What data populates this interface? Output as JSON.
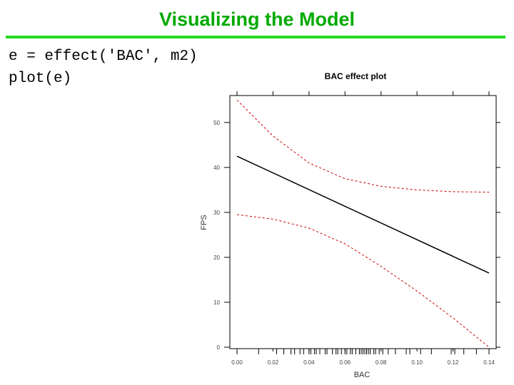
{
  "slide": {
    "title": "Visualizing the Model",
    "code_lines": [
      "e = effect('BAC', m2)",
      "plot(e)"
    ]
  },
  "colors": {
    "title": "#00aa00",
    "rule": "#22dd22",
    "fit_line": "#000000",
    "ci_line": "#cc0000",
    "rug": "#000000"
  },
  "chart_data": {
    "type": "line",
    "title": "BAC effect plot",
    "xlabel": "BAC",
    "ylabel": "FPS",
    "xlim": [
      0,
      0.14
    ],
    "ylim": [
      0,
      56
    ],
    "xticks": [
      0.0,
      0.02,
      0.04,
      0.06,
      0.08,
      0.1,
      0.12,
      0.14
    ],
    "xtick_labels": [
      "0.00",
      "0.02",
      "0.04",
      "0.06",
      "0.08",
      "0.10",
      "0.12",
      "0.14"
    ],
    "yticks": [
      0,
      10,
      20,
      30,
      40,
      50
    ],
    "ytick_labels": [
      "0",
      "10",
      "20",
      "30",
      "40",
      "50"
    ],
    "grid": false,
    "series": [
      {
        "role": "fit",
        "style": "solid",
        "x": [
          0.0,
          0.14
        ],
        "values": [
          42.5,
          16.5
        ]
      },
      {
        "role": "upper-ci",
        "style": "dashed",
        "x": [
          0.0,
          0.02,
          0.04,
          0.06,
          0.08,
          0.1,
          0.12,
          0.14
        ],
        "values": [
          55.0,
          47.0,
          41.0,
          37.5,
          35.8,
          35.0,
          34.6,
          34.5
        ]
      },
      {
        "role": "lower-ci",
        "style": "dashed",
        "x": [
          0.0,
          0.02,
          0.04,
          0.06,
          0.08,
          0.1,
          0.12,
          0.14
        ],
        "values": [
          29.5,
          28.5,
          26.5,
          23.0,
          18.0,
          12.5,
          6.5,
          0.0
        ]
      }
    ],
    "rug_x": [
      0.0,
      0.012,
      0.022,
      0.026,
      0.03,
      0.032,
      0.035,
      0.037,
      0.04,
      0.041,
      0.043,
      0.044,
      0.046,
      0.049,
      0.05,
      0.053,
      0.055,
      0.056,
      0.058,
      0.06,
      0.061,
      0.063,
      0.064,
      0.066,
      0.068,
      0.069,
      0.07,
      0.071,
      0.072,
      0.073,
      0.074,
      0.076,
      0.077,
      0.079,
      0.081,
      0.084,
      0.088,
      0.094,
      0.096,
      0.102,
      0.108,
      0.119,
      0.121,
      0.126,
      0.133,
      0.14
    ]
  }
}
